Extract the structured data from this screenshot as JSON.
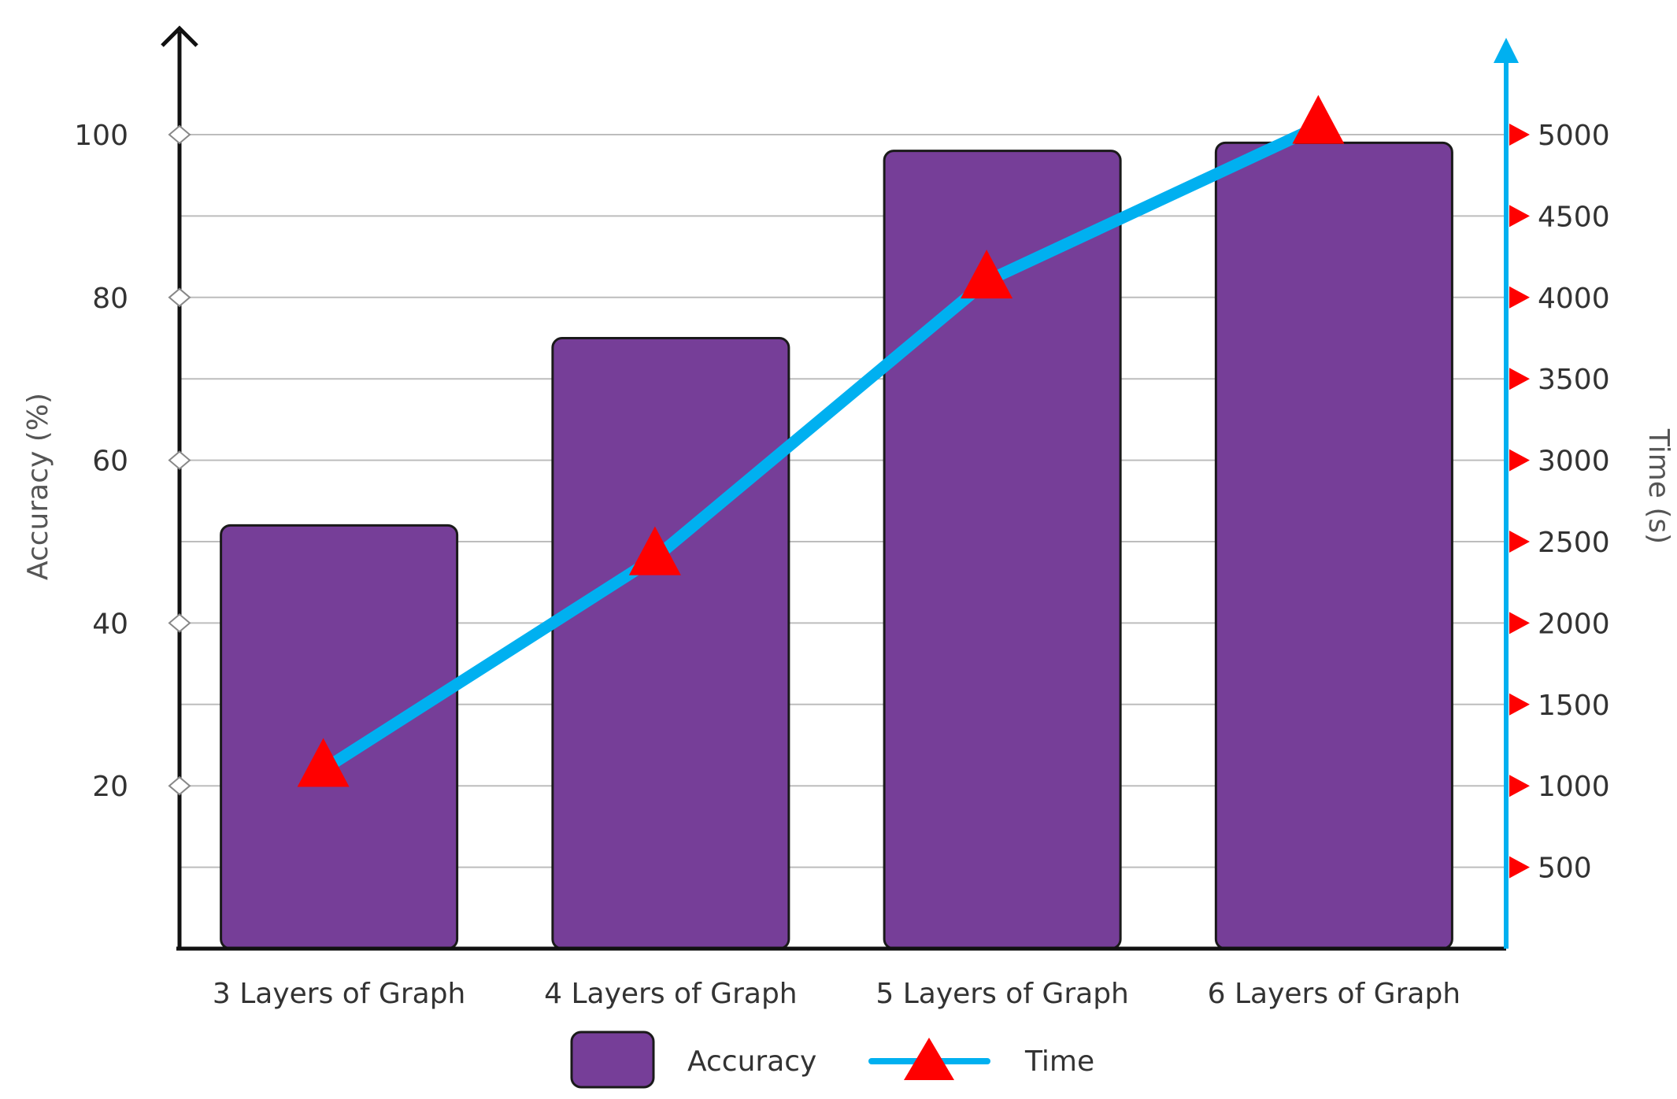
{
  "chart_data": {
    "type": "bar",
    "categories": [
      "3 Layers of Graph",
      "4 Layers of Graph",
      "5 Layers of Graph",
      "6 Layers of Graph"
    ],
    "series": [
      {
        "name": "Accuracy",
        "type": "bar",
        "axis": "left",
        "values": [
          52,
          75,
          98,
          99
        ]
      },
      {
        "name": "Time",
        "type": "line",
        "axis": "right",
        "marker": "triangle",
        "values": [
          1100,
          2400,
          4100,
          5050
        ]
      }
    ],
    "ylabel": "Accuracy (%)",
    "y2label": "Time (s)",
    "ylim": [
      0,
      100
    ],
    "y2lim": [
      0,
      5000
    ],
    "yticks": [
      20,
      40,
      60,
      80,
      100
    ],
    "y2ticks": [
      500,
      1000,
      1500,
      2000,
      2500,
      3000,
      3500,
      4000,
      4500,
      5000
    ],
    "grid": true,
    "legend": "bottom",
    "colors": {
      "bar": "#763e98",
      "bar_outline": "#1a1a1a",
      "line": "#00b0f0",
      "marker": "#ff0000",
      "right_axis": "#00b0f0",
      "grid": "#bdbdbd"
    }
  }
}
